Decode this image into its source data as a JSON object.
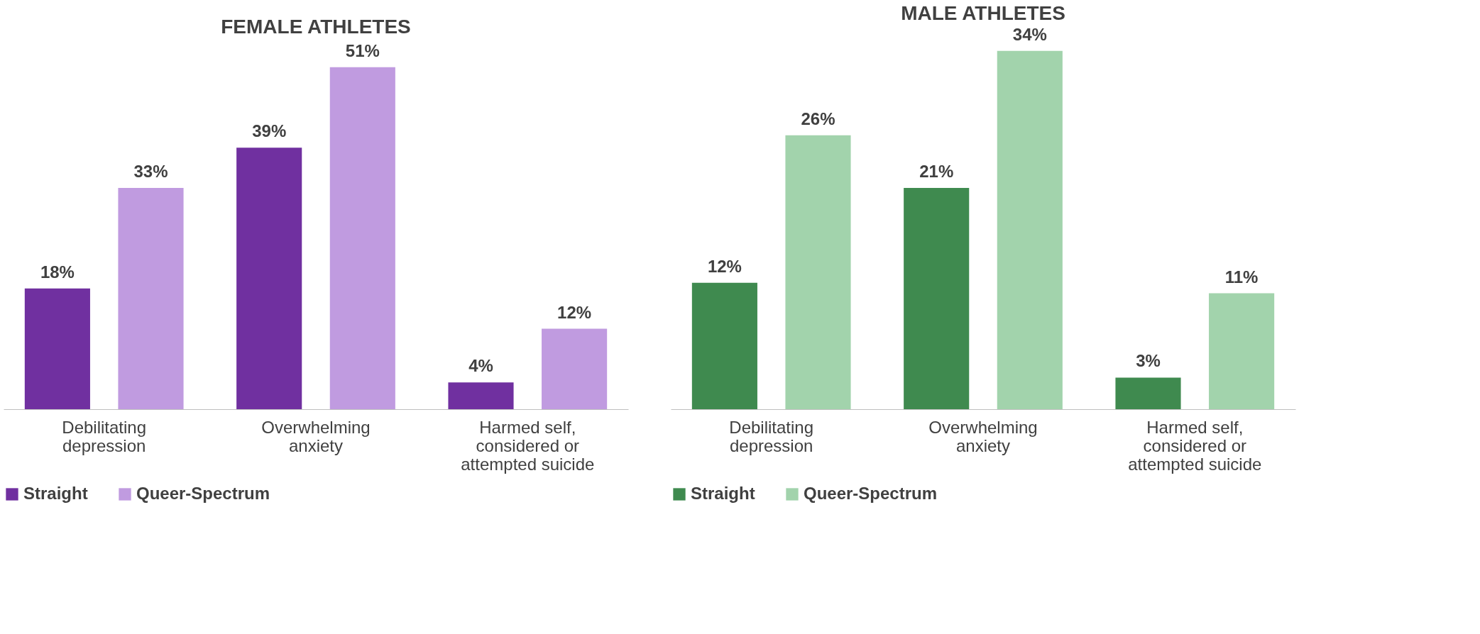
{
  "chart_data": [
    {
      "type": "bar",
      "title": "FEMALE ATHLETES",
      "categories": [
        "Debilitating depression",
        "Overwhelming anxiety",
        "Harmed self, considered or attempted suicide"
      ],
      "legend": "bottom",
      "grid": false,
      "series": [
        {
          "name": "Straight",
          "color": "#7030a0",
          "values": [
            18,
            39,
            4
          ],
          "value_labels": [
            "18%",
            "39%",
            "4%"
          ]
        },
        {
          "name": "Queer-Spectrum",
          "color": "#c09be0",
          "values": [
            33,
            51,
            12
          ],
          "value_labels": [
            "33%",
            "51%",
            "12%"
          ]
        }
      ]
    },
    {
      "type": "bar",
      "title": "MALE ATHLETES",
      "categories": [
        "Debilitating depression",
        "Overwhelming anxiety",
        "Harmed self, considered or attempted suicide"
      ],
      "legend": "bottom",
      "grid": false,
      "series": [
        {
          "name": "Straight",
          "color": "#3f8a4f",
          "values": [
            12,
            21,
            3
          ],
          "value_labels": [
            "12%",
            "21%",
            "3%"
          ]
        },
        {
          "name": "Queer-Spectrum",
          "color": "#a2d3ac",
          "values": [
            26,
            34,
            11
          ],
          "value_labels": [
            "26%",
            "34%",
            "11%"
          ]
        }
      ]
    }
  ]
}
